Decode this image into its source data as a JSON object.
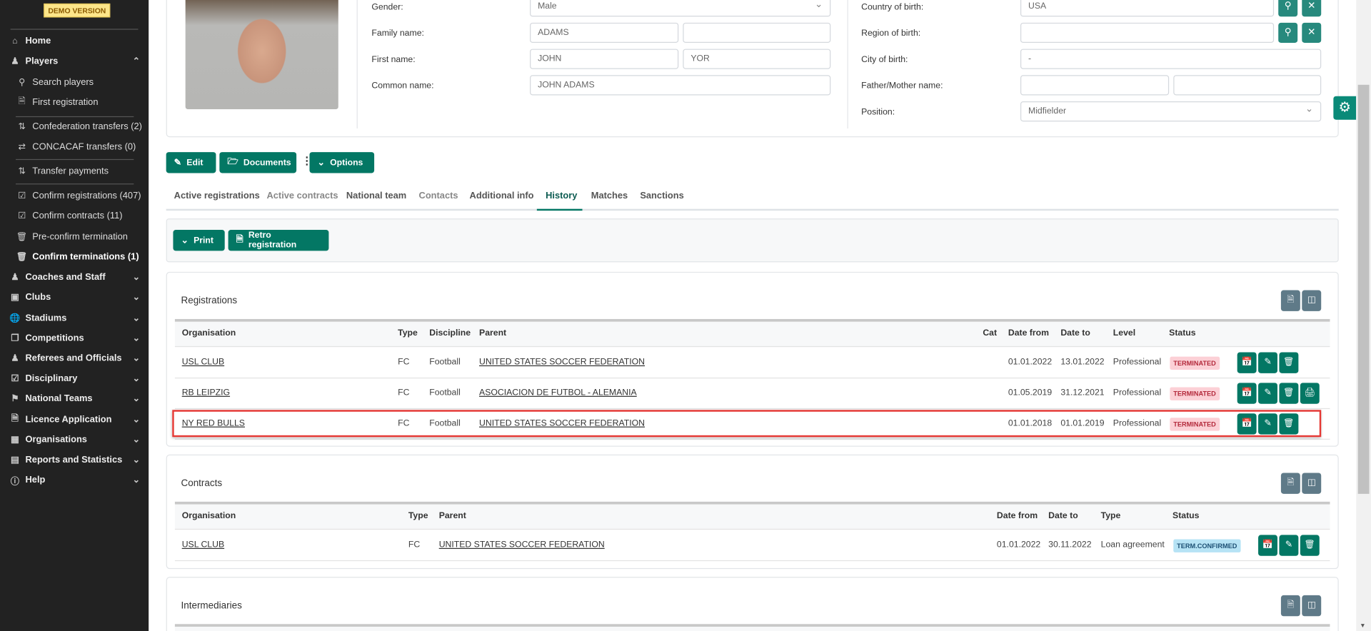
{
  "sidebar": {
    "demo_badge": "DEMO VERSION",
    "items": [
      {
        "label": "Home",
        "icon": "home-icon"
      },
      {
        "label": "Players",
        "icon": "users-icon"
      },
      {
        "label": "Search players",
        "icon": "search-icon"
      },
      {
        "label": "First registration",
        "icon": "file-icon"
      },
      {
        "label": "Confederation transfers (2)",
        "icon": "arrows-updown-icon"
      },
      {
        "label": "CONCACAF transfers (0)",
        "icon": "arrows-leftright-icon"
      },
      {
        "label": "Transfer payments",
        "icon": "transfer-payment-icon"
      },
      {
        "label": "Confirm registrations (407)",
        "icon": "checkbox-icon"
      },
      {
        "label": "Confirm contracts (11)",
        "icon": "checkbox-icon"
      },
      {
        "label": "Pre-confirm termination",
        "icon": "trash-icon"
      },
      {
        "label": "Confirm terminations (1)",
        "icon": "trash-icon"
      },
      {
        "label": "Coaches and Staff",
        "icon": "users-icon"
      },
      {
        "label": "Clubs",
        "icon": "club-icon"
      },
      {
        "label": "Stadiums",
        "icon": "globe-icon"
      },
      {
        "label": "Competitions",
        "icon": "copy-icon"
      },
      {
        "label": "Referees and Officials",
        "icon": "users-icon"
      },
      {
        "label": "Disciplinary",
        "icon": "checkbox-icon"
      },
      {
        "label": "National Teams",
        "icon": "tag-icon"
      },
      {
        "label": "Licence Application",
        "icon": "file-icon"
      },
      {
        "label": "Organisations",
        "icon": "building-icon"
      },
      {
        "label": "Reports and Statistics",
        "icon": "chart-icon"
      },
      {
        "label": "Help",
        "icon": "help-icon"
      }
    ]
  },
  "profile": {
    "gender_label": "Gender:",
    "gender": "Male",
    "family_label": "Family name:",
    "family": "ADAMS",
    "family2": "",
    "first_label": "First name:",
    "first": "JOHN",
    "first2": "YOR",
    "common_label": "Common name:",
    "common": "JOHN ADAMS",
    "country_label": "Country of birth:",
    "country": "USA",
    "region_label": "Region of birth:",
    "region": "",
    "city_label": "City of birth:",
    "city": "-",
    "parent_label": "Father/Mother name:",
    "father": "",
    "mother": "",
    "position_label": "Position:",
    "position": "Midfielder"
  },
  "actions": {
    "edit": "Edit",
    "documents": "Documents",
    "options": "Options"
  },
  "tabs": [
    "Active registrations",
    "Active contracts",
    "National team",
    "Contacts",
    "Additional info",
    "History",
    "Matches",
    "Sanctions"
  ],
  "active_tab": "History",
  "history_toolbar": {
    "print": "Print",
    "retro": "Retro registration"
  },
  "registrations": {
    "title": "Registrations",
    "columns": [
      "Organisation",
      "Type",
      "Discipline",
      "Parent",
      "Cat",
      "Date from",
      "Date to",
      "Level",
      "Status"
    ],
    "rows": [
      {
        "org": "USL CLUB",
        "type": "FC",
        "discipline": "Football",
        "parent": "UNITED STATES SOCCER FEDERATION",
        "cat": "",
        "from": "01.01.2022",
        "to": "13.01.2022",
        "level": "Professional",
        "status": "TERMINATED"
      },
      {
        "org": "RB LEIPZIG",
        "type": "FC",
        "discipline": "Football",
        "parent": "ASOCIACION DE FUTBOL - ALEMANIA",
        "cat": "",
        "from": "01.05.2019",
        "to": "31.12.2021",
        "level": "Professional",
        "status": "TERMINATED"
      },
      {
        "org": "NY RED BULLS",
        "type": "FC",
        "discipline": "Football",
        "parent": "UNITED STATES SOCCER FEDERATION",
        "cat": "",
        "from": "01.01.2018",
        "to": "01.01.2019",
        "level": "Professional",
        "status": "TERMINATED"
      }
    ]
  },
  "contracts": {
    "title": "Contracts",
    "columns": [
      "Organisation",
      "Type",
      "Parent",
      "Date from",
      "Date to",
      "Type",
      "Status"
    ],
    "rows": [
      {
        "org": "USL CLUB",
        "type": "FC",
        "parent": "UNITED STATES SOCCER FEDERATION",
        "from": "01.01.2022",
        "to": "30.11.2022",
        "ctype": "Loan agreement",
        "status": "TERM.CONFIRMED"
      }
    ]
  },
  "intermediaries": {
    "title": "Intermediaries"
  },
  "colors": {
    "primary": "#037764",
    "sidebar": "#222222",
    "terminated_bg": "#fcd0d6",
    "confirmed_bg": "#b6e3f5",
    "highlight": "#e53935"
  }
}
